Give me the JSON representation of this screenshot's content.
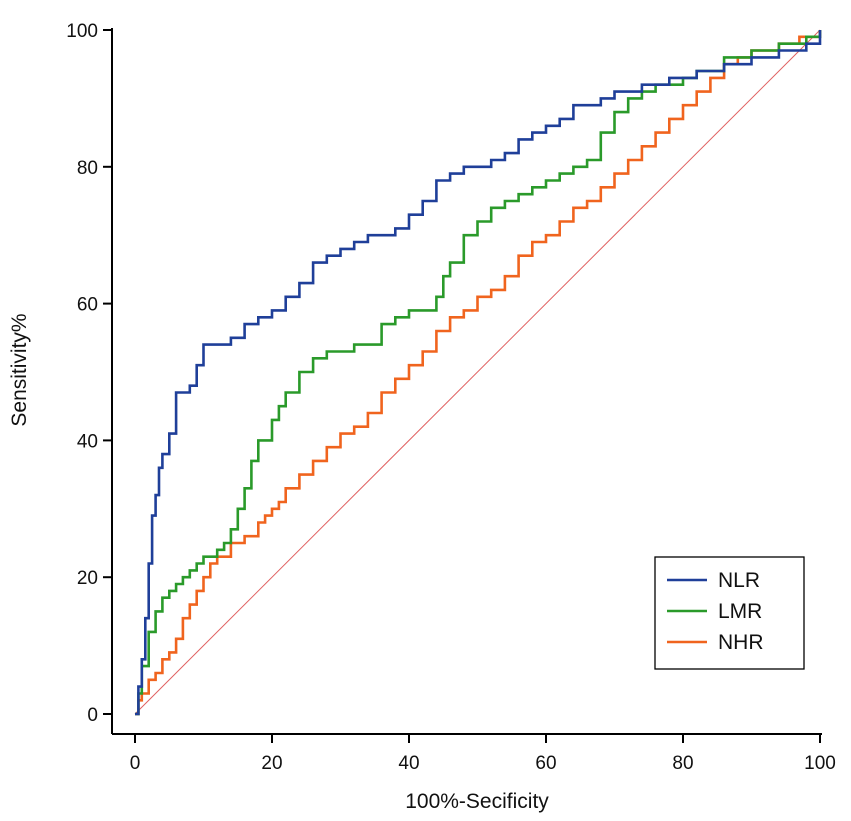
{
  "chart_data": {
    "type": "line",
    "title": "",
    "xlabel": "100%-Secificity",
    "ylabel": "Sensitivity%",
    "xlim": [
      0,
      100
    ],
    "ylim": [
      0,
      100
    ],
    "xticks": [
      0,
      20,
      40,
      60,
      80,
      100
    ],
    "yticks": [
      0,
      20,
      40,
      60,
      80,
      100
    ],
    "grid": false,
    "legend_position": "bottom-right",
    "reference_line": {
      "name": "Reference line",
      "color": "#e06060",
      "points": [
        [
          0,
          0
        ],
        [
          100,
          100
        ]
      ]
    },
    "series": [
      {
        "name": "NLR",
        "color": "#1f3f99",
        "points": [
          [
            0,
            0
          ],
          [
            0.5,
            4
          ],
          [
            1,
            8
          ],
          [
            1.5,
            14
          ],
          [
            2,
            22
          ],
          [
            2.5,
            29
          ],
          [
            3,
            32
          ],
          [
            3.5,
            36
          ],
          [
            4,
            38
          ],
          [
            5,
            41
          ],
          [
            6,
            47
          ],
          [
            8,
            48
          ],
          [
            9,
            51
          ],
          [
            10,
            54
          ],
          [
            12,
            54
          ],
          [
            14,
            55
          ],
          [
            16,
            57
          ],
          [
            18,
            58
          ],
          [
            20,
            59
          ],
          [
            22,
            61
          ],
          [
            24,
            63
          ],
          [
            26,
            66
          ],
          [
            28,
            67
          ],
          [
            30,
            68
          ],
          [
            32,
            69
          ],
          [
            34,
            70
          ],
          [
            38,
            71
          ],
          [
            40,
            73
          ],
          [
            42,
            75
          ],
          [
            44,
            78
          ],
          [
            46,
            79
          ],
          [
            48,
            80
          ],
          [
            52,
            81
          ],
          [
            54,
            82
          ],
          [
            56,
            84
          ],
          [
            58,
            85
          ],
          [
            60,
            86
          ],
          [
            62,
            87
          ],
          [
            64,
            89
          ],
          [
            68,
            90
          ],
          [
            70,
            91
          ],
          [
            74,
            92
          ],
          [
            78,
            93
          ],
          [
            82,
            94
          ],
          [
            86,
            95
          ],
          [
            90,
            96
          ],
          [
            94,
            97
          ],
          [
            98,
            98
          ],
          [
            100,
            100
          ]
        ]
      },
      {
        "name": "LMR",
        "color": "#2a9a2a",
        "points": [
          [
            0,
            0
          ],
          [
            0.5,
            3
          ],
          [
            1,
            7
          ],
          [
            2,
            12
          ],
          [
            3,
            15
          ],
          [
            4,
            17
          ],
          [
            5,
            18
          ],
          [
            6,
            19
          ],
          [
            7,
            20
          ],
          [
            8,
            21
          ],
          [
            9,
            22
          ],
          [
            10,
            23
          ],
          [
            12,
            24
          ],
          [
            13,
            25
          ],
          [
            14,
            27
          ],
          [
            15,
            30
          ],
          [
            16,
            33
          ],
          [
            17,
            37
          ],
          [
            18,
            40
          ],
          [
            20,
            43
          ],
          [
            21,
            45
          ],
          [
            22,
            47
          ],
          [
            24,
            50
          ],
          [
            26,
            52
          ],
          [
            28,
            53
          ],
          [
            32,
            54
          ],
          [
            36,
            57
          ],
          [
            38,
            58
          ],
          [
            40,
            59
          ],
          [
            44,
            61
          ],
          [
            45,
            64
          ],
          [
            46,
            66
          ],
          [
            48,
            70
          ],
          [
            50,
            72
          ],
          [
            52,
            74
          ],
          [
            54,
            75
          ],
          [
            56,
            76
          ],
          [
            58,
            77
          ],
          [
            60,
            78
          ],
          [
            62,
            79
          ],
          [
            64,
            80
          ],
          [
            66,
            81
          ],
          [
            68,
            85
          ],
          [
            70,
            88
          ],
          [
            72,
            90
          ],
          [
            74,
            91
          ],
          [
            76,
            92
          ],
          [
            80,
            93
          ],
          [
            82,
            94
          ],
          [
            86,
            96
          ],
          [
            90,
            97
          ],
          [
            94,
            98
          ],
          [
            98,
            99
          ],
          [
            100,
            100
          ]
        ]
      },
      {
        "name": "NHR",
        "color": "#f0641e",
        "points": [
          [
            0,
            0
          ],
          [
            0.5,
            2
          ],
          [
            1,
            3
          ],
          [
            2,
            5
          ],
          [
            3,
            6
          ],
          [
            4,
            8
          ],
          [
            5,
            9
          ],
          [
            6,
            11
          ],
          [
            7,
            14
          ],
          [
            8,
            16
          ],
          [
            9,
            18
          ],
          [
            10,
            20
          ],
          [
            11,
            22
          ],
          [
            12,
            23
          ],
          [
            14,
            25
          ],
          [
            16,
            26
          ],
          [
            18,
            28
          ],
          [
            19,
            29
          ],
          [
            20,
            30
          ],
          [
            21,
            31
          ],
          [
            22,
            33
          ],
          [
            24,
            35
          ],
          [
            26,
            37
          ],
          [
            28,
            39
          ],
          [
            30,
            41
          ],
          [
            32,
            42
          ],
          [
            34,
            44
          ],
          [
            36,
            47
          ],
          [
            38,
            49
          ],
          [
            40,
            51
          ],
          [
            42,
            53
          ],
          [
            44,
            56
          ],
          [
            46,
            58
          ],
          [
            48,
            59
          ],
          [
            50,
            61
          ],
          [
            52,
            62
          ],
          [
            54,
            64
          ],
          [
            56,
            67
          ],
          [
            58,
            69
          ],
          [
            60,
            70
          ],
          [
            62,
            72
          ],
          [
            64,
            74
          ],
          [
            66,
            75
          ],
          [
            68,
            77
          ],
          [
            70,
            79
          ],
          [
            72,
            81
          ],
          [
            74,
            83
          ],
          [
            76,
            85
          ],
          [
            78,
            87
          ],
          [
            80,
            89
          ],
          [
            82,
            91
          ],
          [
            84,
            93
          ],
          [
            86,
            95
          ],
          [
            88,
            96
          ],
          [
            90,
            97
          ],
          [
            94,
            98
          ],
          [
            97,
            99
          ],
          [
            100,
            100
          ]
        ]
      }
    ]
  }
}
